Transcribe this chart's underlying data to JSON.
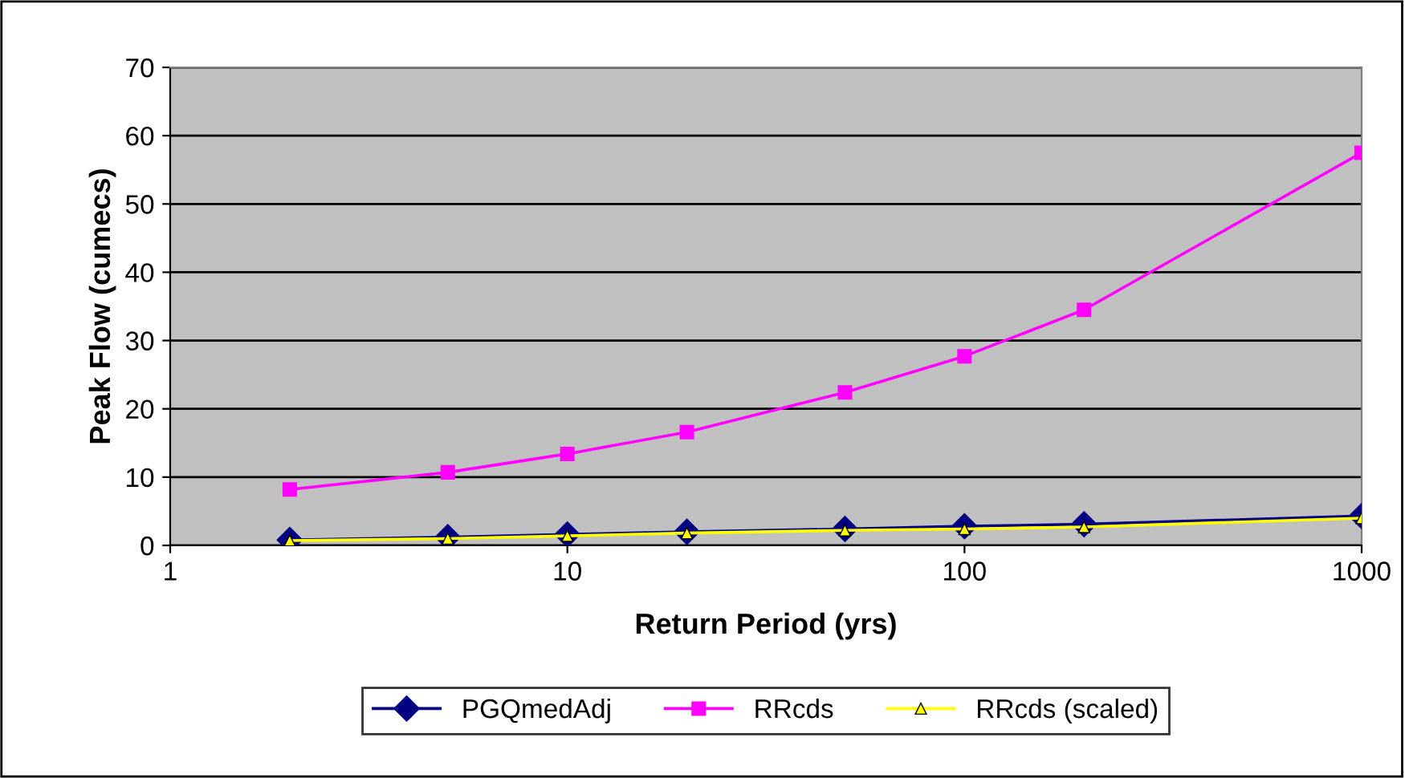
{
  "chart_data": {
    "type": "line",
    "xlabel": "Return Period (yrs)",
    "ylabel": "Peak Flow (cumecs)",
    "log": "x",
    "x": [
      2,
      5,
      10,
      20,
      50,
      100,
      200,
      1000
    ],
    "series": [
      {
        "name": "PGQmedAdj",
        "color": "#000080",
        "marker": "diamond",
        "values": [
          0.8,
          1.2,
          1.6,
          2.0,
          2.4,
          2.8,
          3.1,
          4.3
        ]
      },
      {
        "name": "RRcds",
        "color": "#ff00ff",
        "marker": "square",
        "values": [
          8.2,
          10.7,
          13.4,
          16.6,
          22.4,
          27.7,
          34.5,
          57.5
        ]
      },
      {
        "name": "RRcds (scaled)",
        "color": "#ffff00",
        "marker": "triangle",
        "values": [
          0.7,
          1.0,
          1.4,
          1.8,
          2.2,
          2.4,
          2.7,
          4.0
        ]
      }
    ],
    "xlim": [
      1,
      1000
    ],
    "xticks": [
      1,
      10,
      100,
      1000
    ],
    "ylim": [
      0,
      70
    ],
    "yticks": [
      0,
      10,
      20,
      30,
      40,
      50,
      60,
      70
    ],
    "grid": "y",
    "legend": "bottom"
  }
}
